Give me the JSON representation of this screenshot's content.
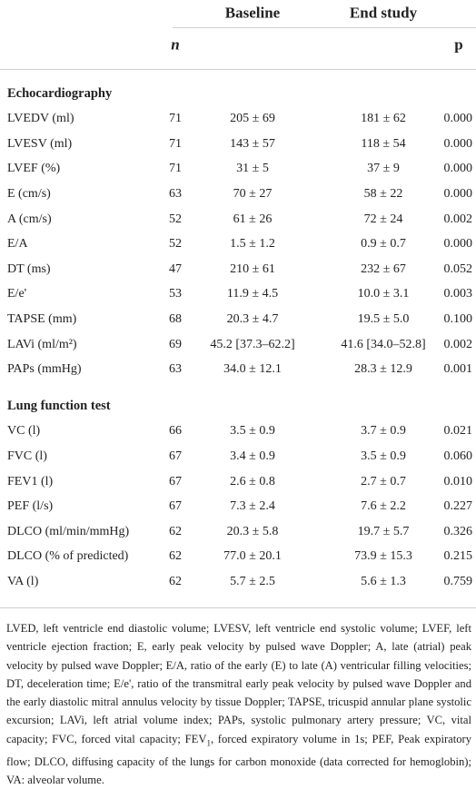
{
  "header": {
    "columns": [
      "Baseline",
      "End study"
    ],
    "n": "n",
    "p": "p"
  },
  "sections": [
    {
      "title": "Echocardiography",
      "rows": [
        [
          "LVEDV (ml)",
          "71",
          "205 ± 69",
          "181 ± 62",
          "0.000"
        ],
        [
          "LVESV (ml)",
          "71",
          "143 ± 57",
          "118 ± 54",
          "0.000"
        ],
        [
          "LVEF (%)",
          "71",
          "31 ± 5",
          "37 ± 9",
          "0.000"
        ],
        [
          "E (cm/s)",
          "63",
          "70 ± 27",
          "58 ± 22",
          "0.000"
        ],
        [
          "A (cm/s)",
          "52",
          "61 ± 26",
          "72 ± 24",
          "0.002"
        ],
        [
          "E/A",
          "52",
          "1.5 ± 1.2",
          "0.9 ± 0.7",
          "0.000"
        ],
        [
          "DT (ms)",
          "47",
          "210 ± 61",
          "232 ± 67",
          "0.052"
        ],
        [
          "E/e'",
          "53",
          "11.9 ± 4.5",
          "10.0 ± 3.1",
          "0.003"
        ],
        [
          "TAPSE (mm)",
          "68",
          "20.3 ± 4.7",
          "19.5 ± 5.0",
          "0.100"
        ],
        [
          "LAVi (ml/m²)",
          "69",
          "45.2 [37.3–62.2]",
          "41.6 [34.0–52.8]",
          "0.002"
        ],
        [
          "PAPs (mmHg)",
          "63",
          "34.0 ± 12.1",
          "28.3 ± 12.9",
          "0.001"
        ]
      ]
    },
    {
      "title": "Lung function test",
      "rows": [
        [
          "VC (l)",
          "66",
          "3.5 ± 0.9",
          "3.7 ± 0.9",
          "0.021"
        ],
        [
          "FVC (l)",
          "67",
          "3.4 ± 0.9",
          "3.5 ± 0.9",
          "0.060"
        ],
        [
          "FEV1 (l)",
          "67",
          "2.6 ± 0.8",
          "2.7 ± 0.7",
          "0.010"
        ],
        [
          "PEF (l/s)",
          "67",
          "7.3 ± 2.4",
          "7.6 ± 2.2",
          "0.227"
        ],
        [
          "DLCO (ml/min/mmHg)",
          "62",
          "20.3 ± 5.8",
          "19.7 ± 5.7",
          "0.326"
        ],
        [
          "DLCO (% of predicted)",
          "62",
          "77.0 ± 20.1",
          "73.9 ± 15.3",
          "0.215"
        ],
        [
          "VA (l)",
          "62",
          "5.7 ± 2.5",
          "5.6 ± 1.3",
          "0.759"
        ]
      ]
    }
  ],
  "footnote": [
    "LVED, left ventricle end diastolic volume; LVESV, left ventricle end systolic volume; LVEF, left ventricle ejection fraction; E, early peak velocity by pulsed wave Doppler; A, late (atrial) peak velocity by pulsed wave Doppler; E/A, ratio of the early (E) to late (A) ventricular filling velocities; DT, deceleration time; E/e', ratio of the transmitral early peak velocity by pulsed wave Doppler and the early diastolic mitral annulus velocity by tissue Doppler; TAPSE, tricuspid annular plane systolic excursion; LAVi, left atrial volume index; PAPs, systolic pulmonary artery pressure; VC, vital capacity; FVC, forced vital capacity; FEV",
    "1",
    ", forced expiratory volume in 1s; PEF, Peak expiratory flow; DLCO, diffusing capacity of the lungs for carbon monoxide (data corrected for hemoglobin); VA: alveolar volume."
  ]
}
